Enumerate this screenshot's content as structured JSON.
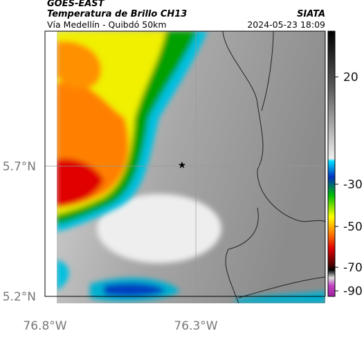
{
  "header": {
    "title": "GOES-EAST",
    "subtitle": "Temperatura de Brillo CH13",
    "route": "Vía Medellín - Quibdó 50km",
    "source": "SIATA",
    "datetime": "2024-05-23 18:09"
  },
  "axes": {
    "lat_labels": [
      "5.7°N",
      "5.2°N"
    ],
    "lon_labels": [
      "76.8°W",
      "76.3°W"
    ]
  },
  "colorbar": {
    "ticks": [
      20,
      -30,
      -50,
      -70,
      -90
    ]
  }
}
